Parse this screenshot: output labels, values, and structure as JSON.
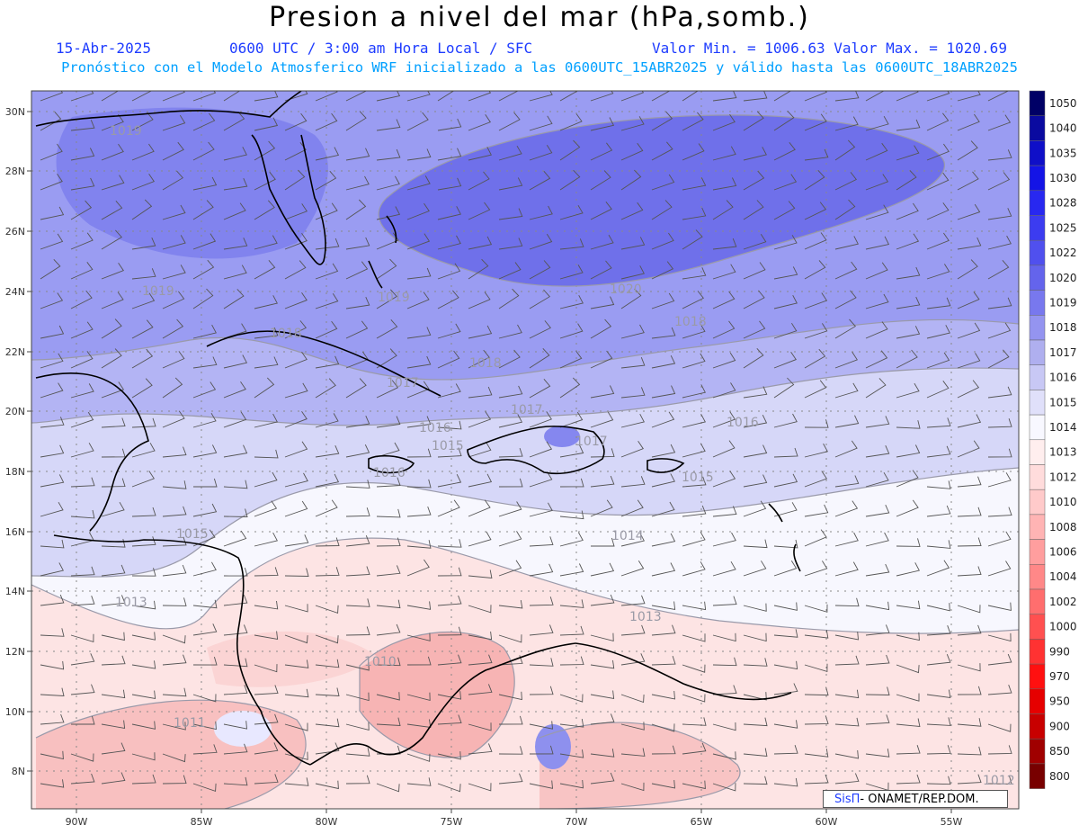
{
  "header": {
    "title": "Presion a nivel del mar (hPa,somb.)",
    "date": "15-Abr-2025",
    "time": "0600 UTC / 3:00 am Hora Local / SFC",
    "min_max": "Valor Min. = 1006.63  Valor Max. = 1020.69",
    "forecast_info": "Pronóstico con el Modelo Atmosferico WRF inicializado a las 0600UTC_15ABR2025 y válido hasta las  0600UTC_18ABR2025"
  },
  "axes": {
    "lat_labels": [
      "30N",
      "28N",
      "26N",
      "24N",
      "22N",
      "20N",
      "18N",
      "16N",
      "14N",
      "12N",
      "10N",
      "8N"
    ],
    "lon_labels": [
      "90W",
      "85W",
      "80W",
      "75W",
      "70W",
      "65W",
      "60W",
      "55W"
    ]
  },
  "contour_labels": [
    "1019",
    "1019",
    "1020",
    "1019",
    "1018",
    "1018",
    "1017",
    "1018",
    "1017",
    "1017",
    "1016",
    "1016",
    "1015",
    "1016",
    "1015",
    "1015",
    "1014",
    "1013",
    "1013",
    "1010",
    "1011",
    "1012"
  ],
  "colorbar": {
    "labels": [
      "1050",
      "1040",
      "1035",
      "1030",
      "1028",
      "1025",
      "1022",
      "1020",
      "1019",
      "1018",
      "1017",
      "1016",
      "1015",
      "1014",
      "1013",
      "1012",
      "1010",
      "1008",
      "1006",
      "1004",
      "1002",
      "1000",
      "990",
      "970",
      "950",
      "900",
      "850",
      "800"
    ],
    "colors": [
      "#000066",
      "#0a0aa0",
      "#0f0fc8",
      "#1414e6",
      "#2828f0",
      "#3c3cf0",
      "#5050ee",
      "#6464ec",
      "#7878ee",
      "#9494f0",
      "#afafef",
      "#c8c8f5",
      "#e0e0fa",
      "#f8f8ff",
      "#ffeeee",
      "#ffdcdc",
      "#ffcaca",
      "#ffb4b4",
      "#ff9e9e",
      "#ff8888",
      "#ff6e6e",
      "#ff5050",
      "#ff3232",
      "#ff1010",
      "#e60000",
      "#c80000",
      "#a00000",
      "#780000"
    ]
  },
  "credit": {
    "brand": "SisΠ",
    "text": "- ONAMET/REP.DOM."
  }
}
